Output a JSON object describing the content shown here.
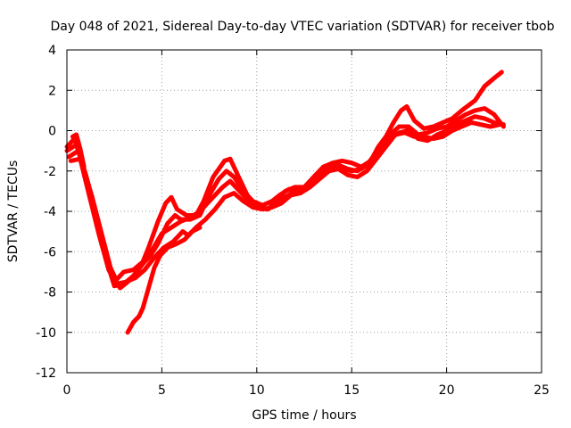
{
  "chart_data": {
    "type": "scatter",
    "title": "Day 048 of 2021, Sidereal Day-to-day VTEC variation (SDTVAR) for receiver tbob",
    "xlabel": "GPS time / hours",
    "ylabel": "SDTVAR / TECUs",
    "xlim": [
      0,
      25
    ],
    "ylim": [
      -12,
      4
    ],
    "xticks": [
      0,
      5,
      10,
      15,
      20,
      25
    ],
    "yticks": [
      -12,
      -10,
      -8,
      -6,
      -4,
      -2,
      0,
      2,
      4
    ],
    "xtick_labels": [
      "0",
      "5",
      "10",
      "15",
      "20",
      "25"
    ],
    "ytick_labels": [
      "-12",
      "-10",
      "-8",
      "-6",
      "-4",
      "-2",
      "0",
      "2",
      "4"
    ],
    "grid": true,
    "color": "#ff0000",
    "series": [
      {
        "points": [
          [
            0.0,
            -0.8
          ],
          [
            0.4,
            -0.4
          ],
          [
            0.8,
            -1.6
          ],
          [
            1.3,
            -3.2
          ],
          [
            1.8,
            -5.0
          ],
          [
            2.3,
            -6.8
          ],
          [
            2.6,
            -7.4
          ],
          [
            3.0,
            -7.0
          ],
          [
            3.5,
            -6.9
          ],
          [
            4.0,
            -6.5
          ],
          [
            4.3,
            -5.8
          ],
          [
            4.8,
            -4.5
          ],
          [
            5.2,
            -3.6
          ],
          [
            5.5,
            -3.3
          ],
          [
            5.8,
            -3.9
          ],
          [
            6.3,
            -4.2
          ],
          [
            6.8,
            -4.2
          ],
          [
            7.2,
            -3.5
          ],
          [
            7.7,
            -2.3
          ],
          [
            8.3,
            -1.5
          ],
          [
            8.6,
            -1.4
          ],
          [
            9.0,
            -2.2
          ],
          [
            9.5,
            -3.2
          ],
          [
            10.0,
            -3.8
          ],
          [
            10.6,
            -3.9
          ],
          [
            11.0,
            -3.5
          ],
          [
            11.5,
            -3.0
          ],
          [
            12.0,
            -2.8
          ],
          [
            12.5,
            -2.8
          ],
          [
            13.0,
            -2.3
          ],
          [
            13.5,
            -1.8
          ],
          [
            14.0,
            -1.6
          ],
          [
            14.5,
            -1.5
          ],
          [
            15.0,
            -1.6
          ],
          [
            15.5,
            -1.8
          ],
          [
            16.0,
            -1.5
          ],
          [
            16.4,
            -0.8
          ],
          [
            16.8,
            -0.3
          ],
          [
            17.2,
            0.4
          ],
          [
            17.6,
            1.0
          ],
          [
            17.9,
            1.2
          ],
          [
            18.3,
            0.5
          ],
          [
            18.8,
            0.1
          ],
          [
            19.3,
            0.2
          ],
          [
            19.8,
            0.4
          ],
          [
            20.3,
            0.6
          ],
          [
            20.8,
            1.0
          ],
          [
            21.5,
            1.5
          ],
          [
            22.0,
            2.2
          ],
          [
            22.5,
            2.6
          ],
          [
            22.9,
            2.9
          ]
        ]
      },
      {
        "points": [
          [
            0.0,
            -1.0
          ],
          [
            0.5,
            -0.7
          ],
          [
            1.0,
            -2.2
          ],
          [
            1.5,
            -4.0
          ],
          [
            2.0,
            -5.8
          ],
          [
            2.4,
            -7.2
          ],
          [
            2.8,
            -7.8
          ],
          [
            3.2,
            -7.5
          ],
          [
            3.6,
            -7.1
          ],
          [
            4.0,
            -6.6
          ],
          [
            4.4,
            -6.2
          ],
          [
            4.8,
            -5.6
          ],
          [
            5.3,
            -4.6
          ],
          [
            5.7,
            -4.2
          ],
          [
            6.0,
            -4.4
          ],
          [
            6.5,
            -4.4
          ],
          [
            7.0,
            -4.2
          ],
          [
            7.5,
            -3.2
          ],
          [
            8.0,
            -2.4
          ],
          [
            8.4,
            -2.0
          ],
          [
            8.8,
            -2.3
          ],
          [
            9.3,
            -3.0
          ],
          [
            9.8,
            -3.5
          ],
          [
            10.3,
            -3.7
          ],
          [
            10.8,
            -3.5
          ],
          [
            11.2,
            -3.2
          ],
          [
            11.7,
            -2.9
          ],
          [
            12.2,
            -3.0
          ],
          [
            12.8,
            -2.7
          ],
          [
            13.3,
            -2.2
          ],
          [
            13.8,
            -1.8
          ],
          [
            14.3,
            -1.7
          ],
          [
            14.8,
            -1.9
          ],
          [
            15.3,
            -2.0
          ],
          [
            15.8,
            -1.7
          ],
          [
            16.2,
            -1.2
          ],
          [
            16.6,
            -0.6
          ],
          [
            17.0,
            -0.2
          ],
          [
            17.5,
            0.2
          ],
          [
            18.0,
            0.2
          ],
          [
            18.5,
            -0.2
          ],
          [
            19.0,
            -0.1
          ],
          [
            19.5,
            0.1
          ],
          [
            20.0,
            0.2
          ],
          [
            20.5,
            0.5
          ],
          [
            21.0,
            0.8
          ],
          [
            21.5,
            1.0
          ],
          [
            22.0,
            1.1
          ],
          [
            22.5,
            0.8
          ],
          [
            23.0,
            0.2
          ]
        ]
      },
      {
        "points": [
          [
            0.1,
            -1.3
          ],
          [
            0.6,
            -1.0
          ],
          [
            1.1,
            -2.8
          ],
          [
            1.6,
            -4.8
          ],
          [
            2.1,
            -6.5
          ],
          [
            2.5,
            -7.7
          ],
          [
            3.0,
            -7.6
          ],
          [
            3.5,
            -7.2
          ],
          [
            4.0,
            -6.6
          ],
          [
            4.5,
            -5.9
          ],
          [
            5.0,
            -5.1
          ],
          [
            5.5,
            -4.8
          ],
          [
            6.0,
            -4.5
          ],
          [
            6.5,
            -4.3
          ],
          [
            7.0,
            -4.0
          ],
          [
            7.6,
            -3.4
          ],
          [
            8.2,
            -2.8
          ],
          [
            8.6,
            -2.5
          ],
          [
            9.0,
            -2.9
          ],
          [
            9.5,
            -3.4
          ],
          [
            10.0,
            -3.7
          ],
          [
            10.5,
            -3.9
          ],
          [
            11.0,
            -3.7
          ],
          [
            11.5,
            -3.3
          ],
          [
            12.0,
            -3.0
          ],
          [
            12.5,
            -2.9
          ],
          [
            13.0,
            -2.5
          ],
          [
            13.5,
            -2.1
          ],
          [
            14.0,
            -1.8
          ],
          [
            14.5,
            -1.9
          ],
          [
            15.0,
            -2.0
          ],
          [
            15.5,
            -1.9
          ],
          [
            16.0,
            -1.6
          ],
          [
            16.5,
            -1.0
          ],
          [
            17.0,
            -0.4
          ],
          [
            17.5,
            -0.1
          ],
          [
            18.0,
            0.0
          ],
          [
            18.5,
            -0.4
          ],
          [
            19.0,
            -0.5
          ],
          [
            19.5,
            -0.2
          ],
          [
            20.0,
            0.0
          ],
          [
            20.5,
            0.3
          ],
          [
            21.0,
            0.5
          ],
          [
            21.5,
            0.7
          ],
          [
            22.0,
            0.6
          ],
          [
            22.5,
            0.4
          ],
          [
            23.0,
            0.3
          ]
        ]
      },
      {
        "points": [
          [
            0.2,
            -1.5
          ],
          [
            0.7,
            -1.4
          ],
          [
            1.2,
            -3.3
          ],
          [
            1.7,
            -5.2
          ],
          [
            2.2,
            -6.9
          ],
          [
            2.6,
            -7.6
          ],
          [
            3.1,
            -7.5
          ],
          [
            3.6,
            -7.3
          ],
          [
            4.1,
            -6.9
          ],
          [
            4.6,
            -6.3
          ],
          [
            5.1,
            -5.8
          ],
          [
            5.6,
            -5.5
          ],
          [
            6.1,
            -5.0
          ],
          [
            6.4,
            -5.2
          ],
          [
            6.8,
            -4.8
          ],
          [
            7.3,
            -4.4
          ],
          [
            7.8,
            -3.9
          ],
          [
            8.3,
            -3.3
          ],
          [
            8.8,
            -3.1
          ],
          [
            9.3,
            -3.5
          ],
          [
            9.8,
            -3.8
          ],
          [
            10.3,
            -3.9
          ],
          [
            10.8,
            -3.8
          ],
          [
            11.3,
            -3.6
          ],
          [
            11.8,
            -3.2
          ],
          [
            12.3,
            -3.1
          ],
          [
            12.8,
            -2.8
          ],
          [
            13.3,
            -2.4
          ],
          [
            13.8,
            -2.0
          ],
          [
            14.3,
            -1.9
          ],
          [
            14.8,
            -2.2
          ],
          [
            15.3,
            -2.3
          ],
          [
            15.8,
            -2.0
          ],
          [
            16.3,
            -1.4
          ],
          [
            16.8,
            -0.8
          ],
          [
            17.3,
            -0.2
          ],
          [
            17.8,
            -0.1
          ],
          [
            18.3,
            -0.3
          ],
          [
            18.8,
            -0.3
          ],
          [
            19.3,
            -0.4
          ],
          [
            19.8,
            -0.3
          ],
          [
            20.3,
            0.0
          ],
          [
            20.8,
            0.2
          ],
          [
            21.3,
            0.4
          ],
          [
            21.8,
            0.3
          ],
          [
            22.3,
            0.2
          ],
          [
            22.8,
            0.3
          ]
        ]
      },
      {
        "points": [
          [
            3.2,
            -10.0
          ],
          [
            3.5,
            -9.5
          ],
          [
            3.8,
            -9.2
          ],
          [
            4.0,
            -8.8
          ],
          [
            4.3,
            -7.8
          ],
          [
            4.6,
            -6.8
          ],
          [
            4.9,
            -6.2
          ],
          [
            5.3,
            -5.8
          ],
          [
            5.8,
            -5.6
          ],
          [
            6.2,
            -5.4
          ],
          [
            6.6,
            -5.0
          ],
          [
            7.0,
            -4.8
          ]
        ]
      },
      {
        "points": [
          [
            0.3,
            -0.3
          ],
          [
            0.5,
            -0.2
          ],
          [
            0.7,
            -0.9
          ],
          [
            0.9,
            -1.8
          ]
        ]
      }
    ]
  }
}
